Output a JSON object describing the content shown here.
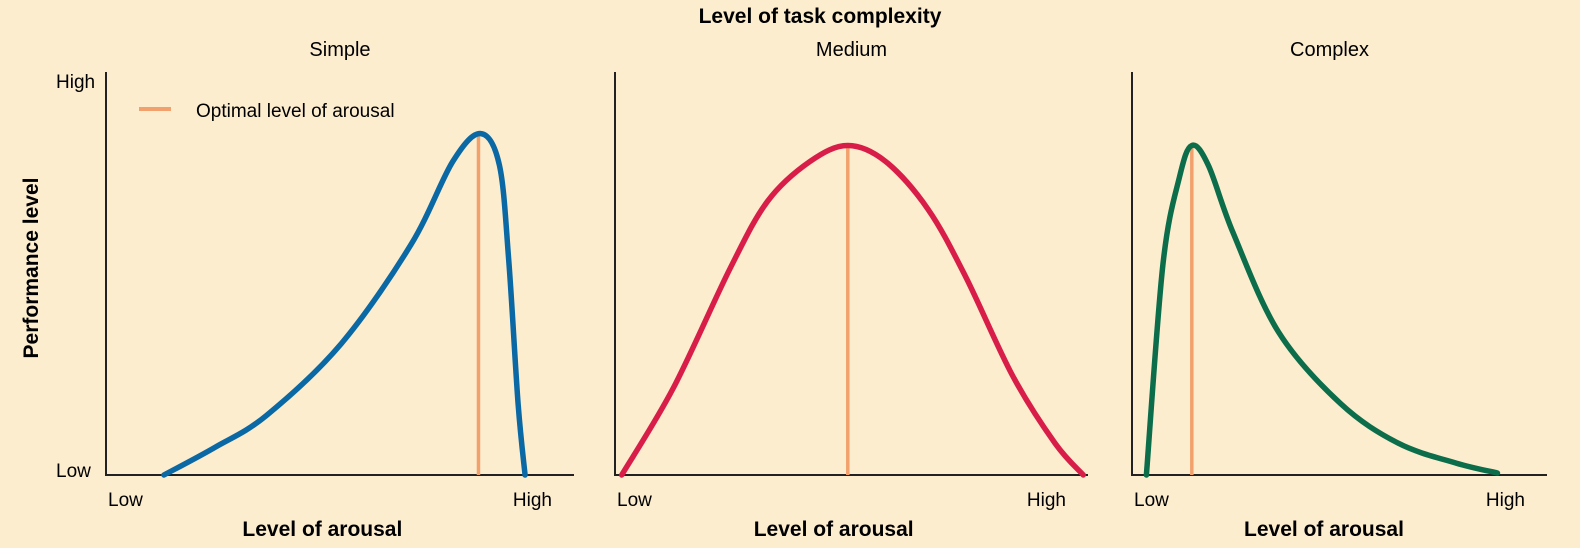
{
  "title": "Level of task complexity",
  "legend": {
    "label": "Optimal level of arousal",
    "color": "#f2a16d",
    "placement": "top-left"
  },
  "chart_data": [
    {
      "type": "line",
      "panel_title": "Simple",
      "xlabel": "Level of arousal",
      "ylabel": "Performance level",
      "x_ticks": [
        "Low",
        "High"
      ],
      "y_ticks": [
        "Low",
        "High"
      ],
      "xlim": [
        0,
        100
      ],
      "ylim": [
        0,
        100
      ],
      "grid": false,
      "series": [
        {
          "color": "#0a68a4",
          "points": [
            [
              12,
              0
            ],
            [
              23,
              7
            ],
            [
              34,
              15
            ],
            [
              50,
              33
            ],
            [
              65,
              58
            ],
            [
              74,
              79
            ],
            [
              80,
              86
            ],
            [
              84,
              78
            ],
            [
              86,
              54
            ],
            [
              88,
              18
            ],
            [
              89.5,
              0
            ]
          ]
        }
      ],
      "optimal_x": 79.5
    },
    {
      "type": "line",
      "panel_title": "Medium",
      "xlabel": "Level of arousal",
      "ylabel": "",
      "x_ticks": [
        "Low",
        "High"
      ],
      "y_ticks": [],
      "xlim": [
        0,
        100
      ],
      "ylim": [
        0,
        100
      ],
      "grid": false,
      "series": [
        {
          "color": "#d81e48",
          "points": [
            [
              1,
              0
            ],
            [
              12,
              22
            ],
            [
              24,
              52
            ],
            [
              32,
              69
            ],
            [
              41,
              79
            ],
            [
              49,
              83
            ],
            [
              57,
              79
            ],
            [
              66,
              67
            ],
            [
              74,
              50
            ],
            [
              84,
              25
            ],
            [
              93,
              8
            ],
            [
              99,
              0
            ]
          ]
        }
      ],
      "optimal_x": 49
    },
    {
      "type": "line",
      "panel_title": "Complex",
      "xlabel": "Level of arousal",
      "ylabel": "",
      "x_ticks": [
        "Low",
        "High"
      ],
      "y_ticks": [],
      "xlim": [
        0,
        100
      ],
      "ylim": [
        0,
        100
      ],
      "grid": false,
      "series": [
        {
          "color": "#0c6d4b",
          "points": [
            [
              3,
              0
            ],
            [
              7,
              53
            ],
            [
              11,
              75
            ],
            [
              14,
              83
            ],
            [
              18,
              78
            ],
            [
              24,
              61
            ],
            [
              35,
              36
            ],
            [
              50,
              18
            ],
            [
              64,
              8
            ],
            [
              78,
              3
            ],
            [
              88,
              0.5
            ]
          ]
        }
      ],
      "optimal_x": 14
    }
  ]
}
